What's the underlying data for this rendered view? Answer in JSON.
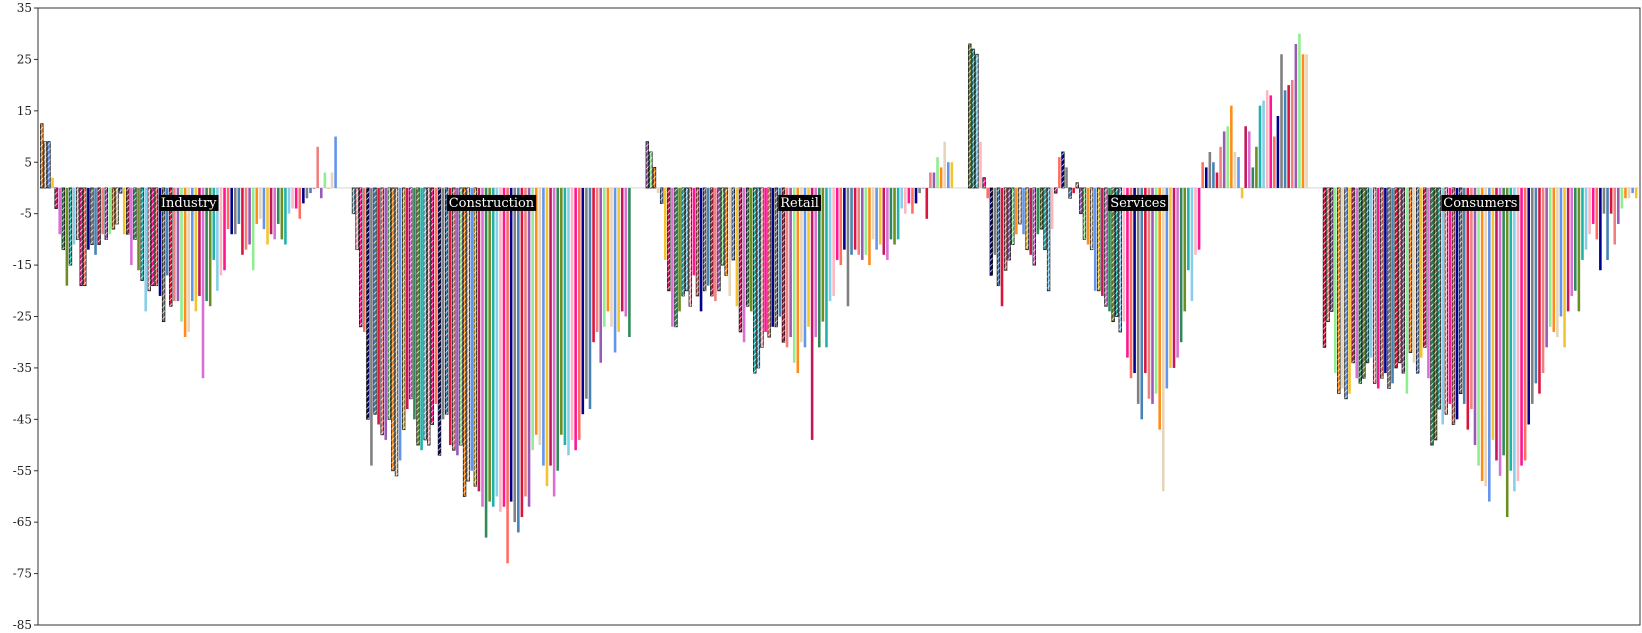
{
  "chart_data": {
    "type": "bar",
    "title": "",
    "xlabel": "",
    "ylabel": "",
    "ylim": [
      -85,
      35
    ],
    "yticks": [
      35,
      25,
      15,
      5,
      -5,
      -15,
      -25,
      -35,
      -45,
      -55,
      -65,
      -75,
      -85
    ],
    "grid": false,
    "legend": "none",
    "palette": [
      "#FF8C1A",
      "#F4C430",
      "#2E8B57",
      "#87CEEB",
      "#FF6F61",
      "#4682B4",
      "#9B59B6",
      "#E6D5B8",
      "#C2185B",
      "#6B8E23",
      "#FFB6C1",
      "#00008B",
      "#DC143C",
      "#90EE90",
      "#6495ED",
      "#DA70D6",
      "#20B2AA",
      "#FF1493",
      "#808080",
      "#F08080"
    ],
    "groups": [
      {
        "label": "Industry",
        "values": [
          12.5,
          9,
          9,
          2,
          -4,
          -9,
          -12,
          -19,
          -15,
          -11,
          -10,
          -19,
          -19,
          -12,
          -11,
          -13,
          -11,
          -9,
          -10,
          -9,
          -8,
          -7,
          -1,
          -9,
          -9,
          -15,
          -10,
          -16,
          -18,
          -24,
          -20,
          -19,
          -19,
          -21,
          -26,
          -17,
          -23,
          -22,
          -22,
          -26,
          -29,
          -28,
          -22,
          -24,
          -21,
          -37,
          -22,
          -23,
          -14,
          -20,
          -17,
          -16,
          -8,
          -9,
          -9,
          -7,
          -13,
          -12,
          -11,
          -16,
          -7,
          -6,
          -8,
          -11,
          -9,
          -10,
          -7,
          -10,
          -11,
          -5,
          -4,
          -4,
          -6,
          -3,
          -2,
          -1,
          0,
          8,
          -2,
          3,
          0,
          3,
          10
        ]
      },
      {
        "label": "Construction",
        "values": [
          -5,
          -12,
          -27,
          -28,
          -45,
          -54,
          -44,
          -46,
          -48,
          -49,
          -45,
          -55,
          -56,
          -53,
          -47,
          -43,
          -41,
          -45,
          -50,
          -51,
          -49,
          -50,
          -46,
          -42,
          -52,
          -45,
          -44,
          -50,
          -51,
          -52,
          -50,
          -60,
          -57,
          -55,
          -58,
          -59,
          -62,
          -68,
          -61,
          -62,
          -60,
          -63,
          -62,
          -73,
          -61,
          -65,
          -67,
          -64,
          -60,
          -62,
          -51,
          -48,
          -50,
          -54,
          -58,
          -54,
          -60,
          -55,
          -48,
          -50,
          -52,
          -49,
          -51,
          -49,
          -44,
          -41,
          -43,
          -30,
          -28,
          -34,
          -27,
          -24,
          -27,
          -32,
          -28,
          -24,
          -25,
          -29
        ]
      },
      {
        "label": "Retail",
        "values": [
          9,
          7,
          4,
          -1,
          -3,
          -14,
          -20,
          -27,
          -27,
          -24,
          -21,
          -20,
          -23,
          -17,
          -21,
          -24,
          -20,
          -19,
          -21,
          -22,
          -20,
          -15,
          -17,
          -21,
          -14,
          -23,
          -28,
          -30,
          -23,
          -24,
          -36,
          -35,
          -31,
          -28,
          -29,
          -27,
          -27,
          -25,
          -30,
          -31,
          -29,
          -34,
          -36,
          -30,
          -31,
          -27,
          -49,
          -29,
          -31,
          -26,
          -31,
          -22,
          -21,
          -14,
          -15,
          -12,
          -23,
          -13,
          -12,
          -13,
          -14,
          -13,
          -15,
          -10,
          -12,
          -11,
          -13,
          -14,
          -10,
          -11,
          -10,
          -4,
          -5,
          -3,
          -5,
          -3,
          -1,
          0,
          -6,
          3,
          3,
          6,
          4,
          9,
          5,
          5
        ]
      },
      {
        "label": "Services",
        "values": [
          28,
          27,
          26,
          9,
          2,
          -2,
          -17,
          -13,
          -19,
          -23,
          -16,
          -14,
          -11,
          -9,
          -7,
          -9,
          -12,
          -13,
          -15,
          -9,
          -8,
          -12,
          -20,
          -8,
          -1,
          6,
          7,
          4,
          -2,
          -1,
          1,
          -5,
          -10,
          -11,
          -12,
          -20,
          -20,
          -21,
          -23,
          -24,
          -26,
          -25,
          -28,
          -26,
          -33,
          -37,
          -36,
          -42,
          -45,
          -36,
          -41,
          -42,
          -40,
          -47,
          -59,
          -39,
          -35,
          -35,
          -33,
          -30,
          -24,
          -16,
          -22,
          -13,
          -12,
          5,
          4,
          7,
          5,
          3,
          8,
          11,
          12,
          16,
          7,
          6,
          -2,
          12,
          11,
          4,
          8,
          16,
          17,
          19,
          18,
          10,
          14,
          26,
          19,
          20,
          21,
          28,
          30,
          26,
          26
        ]
      },
      {
        "label": "Consumers",
        "values": [
          -31,
          -26,
          -24,
          -36,
          -40,
          -39,
          -41,
          -40,
          -34,
          -37,
          -38,
          -37,
          -34,
          -33,
          -38,
          -39,
          -37,
          -36,
          -39,
          -38,
          -35,
          -34,
          -36,
          -40,
          -32,
          -34,
          -36,
          -33,
          -31,
          -37,
          -50,
          -49,
          -43,
          -46,
          -44,
          -42,
          -46,
          -45,
          -40,
          -42,
          -47,
          -43,
          -50,
          -54,
          -57,
          -58,
          -61,
          -49,
          -53,
          -56,
          -52,
          -64,
          -55,
          -59,
          -57,
          -54,
          -53,
          -46,
          -42,
          -38,
          -40,
          -36,
          -31,
          -27,
          -28,
          -29,
          -25,
          -31,
          -24,
          -21,
          -20,
          -24,
          -14,
          -12,
          -9,
          -7,
          -10,
          -16,
          -5,
          -14,
          -5,
          -11,
          -7,
          -4,
          -2,
          -2,
          -1,
          -2
        ]
      }
    ]
  }
}
